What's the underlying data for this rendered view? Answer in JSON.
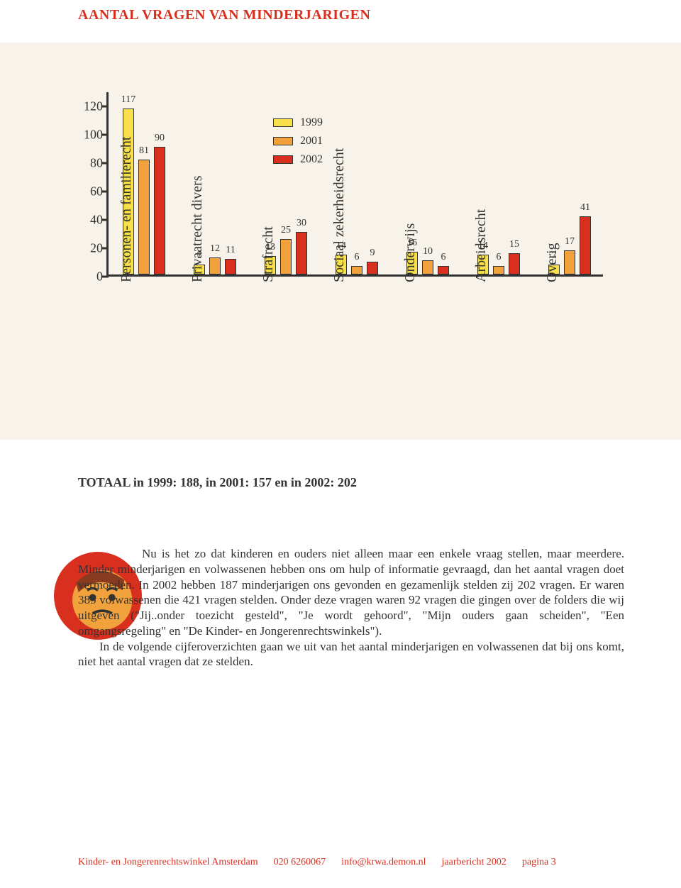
{
  "title": "AANTAL VRAGEN VAN MINDERJARIGEN",
  "title_color": "#d92f1f",
  "chart": {
    "type": "bar",
    "background_color": "#f7f3ea",
    "axis_color": "#333333",
    "ymax": 130,
    "yticks": [
      0,
      20,
      40,
      60,
      80,
      100,
      120
    ],
    "series": [
      {
        "label": "1999",
        "color": "#f7e04a"
      },
      {
        "label": "2001",
        "color": "#f2a23c"
      },
      {
        "label": "2002",
        "color": "#d92f1f"
      }
    ],
    "categories": [
      {
        "label": "Personen- en\nfamilierecht",
        "values": [
          117,
          81,
          90
        ]
      },
      {
        "label": "Privaatrecht divers",
        "values": [
          7,
          12,
          11
        ]
      },
      {
        "label": "Strafrecht",
        "values": [
          13,
          25,
          30
        ]
      },
      {
        "label": "Sociaal zekerheidsrecht",
        "values": [
          14,
          6,
          9
        ]
      },
      {
        "label": "Onderwijs",
        "values": [
          16,
          10,
          6
        ]
      },
      {
        "label": "Arbeidsrecht",
        "values": [
          14,
          6,
          15
        ]
      },
      {
        "label": "Overig",
        "values": [
          7,
          17,
          41
        ]
      }
    ],
    "bar_label_fontsize": 14,
    "axis_fontsize": 18,
    "category_fontsize": 20
  },
  "totals_line": "TOTAAL in 1999: 188, in 2001: 157 en in 2002: 202",
  "body_paragraph": "Nu is het zo dat kinderen en ouders niet alleen maar een enkele vraag stellen, maar meerdere. Minder minderjarigen en volwassenen hebben ons om hulp of informatie gevraagd, dan het aantal vragen doet vermoeden. In 2002 hebben 187 minderjarigen ons gevonden en gezamenlijk stelden zij 202 vragen. Er waren 385 volwassenen die 421 vragen stelden. Onder deze vragen waren 92 vragen die gingen over de folders die wij uitgeven (\"Jij..onder toezicht gesteld\", \"Je wordt gehoord\", \"Mijn ouders gaan scheiden\", \"Een omgangsregeling\" en \"De Kinder- en Jongerenrechtswinkels\").",
  "body_paragraph_2": "In de volgende cijferoverzichten gaan we uit van het aantal minderjarigen en volwassenen dat bij ons komt, niet het aantal vragen dat ze stelden.",
  "footer": {
    "org": "Kinder- en Jongerenrechtswinkel Amsterdam",
    "phone": "020 6260067",
    "email": "info@krwa.demon.nl",
    "doc": "jaarbericht 2002",
    "page": "pagina 3",
    "accent_color": "#d92f1f"
  },
  "avatar": {
    "bg": "#d92f1f",
    "face": "#f2a23c"
  }
}
